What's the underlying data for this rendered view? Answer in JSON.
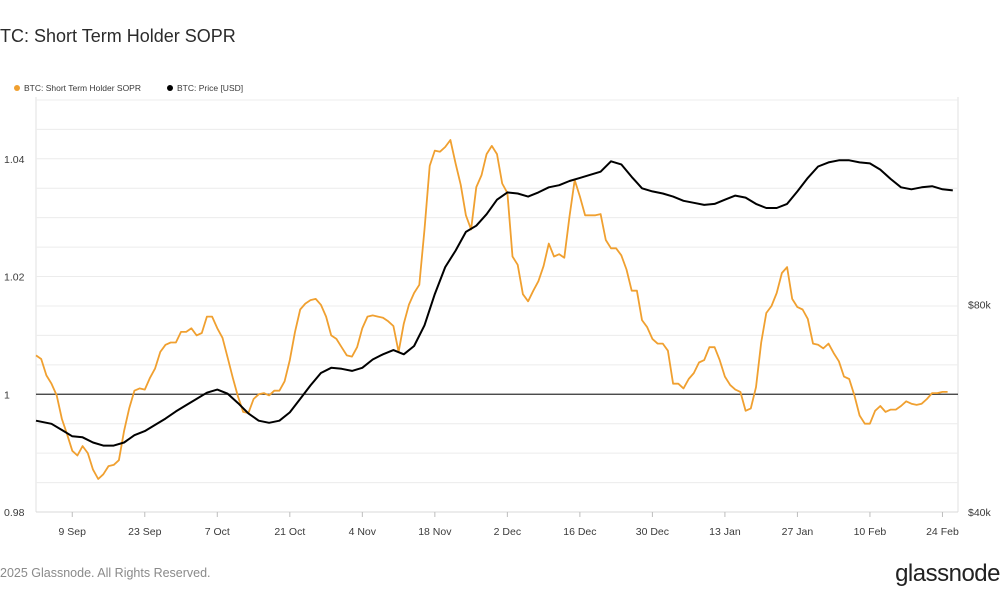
{
  "header": {
    "title": "TC: Short Term Holder SOPR"
  },
  "footer": {
    "copyright": "2025 Glassnode. All Rights Reserved.",
    "brand": "glassnode"
  },
  "colors": {
    "sopr": "#f0a030",
    "price": "#000000",
    "baseline": "#333333",
    "grid": "#ececec"
  },
  "chart_data": {
    "type": "line",
    "title": "TC: Short Term Holder SOPR",
    "legend": [
      "BTC: Short Term Holder SOPR",
      "BTC: Price [USD]"
    ],
    "legend_position": "top-left",
    "x_ticks": [
      "9 Sep",
      "23 Sep",
      "7 Oct",
      "21 Oct",
      "4 Nov",
      "18 Nov",
      "2 Dec",
      "16 Dec",
      "30 Dec",
      "13 Jan",
      "27 Jan",
      "10 Feb",
      "24 Feb"
    ],
    "x_tick_days": [
      7,
      21,
      35,
      49,
      63,
      77,
      91,
      105,
      119,
      133,
      147,
      161,
      175
    ],
    "x_range_days": [
      0,
      178
    ],
    "y_left": {
      "ticks": [
        0.98,
        1,
        1.02,
        1.04
      ],
      "tick_labels": [
        "0.98",
        "1",
        "1.02",
        "1.04"
      ],
      "range": [
        0.98,
        1.0505
      ]
    },
    "y_right": {
      "ticks": [
        40000,
        80000
      ],
      "tick_labels": [
        "$40k",
        "$80k"
      ],
      "range": [
        40000,
        120000
      ]
    },
    "series": [
      {
        "name": "BTC: Short Term Holder SOPR",
        "axis": "left",
        "points": [
          [
            0,
            1.0066
          ],
          [
            1,
            1.006
          ],
          [
            2,
            1.0032
          ],
          [
            3,
            1.0018
          ],
          [
            4,
            0.9998
          ],
          [
            5,
            0.9958
          ],
          [
            6,
            0.9932
          ],
          [
            7,
            0.9904
          ],
          [
            8,
            0.9896
          ],
          [
            9,
            0.9912
          ],
          [
            10,
            0.99
          ],
          [
            11,
            0.9872
          ],
          [
            12,
            0.9856
          ],
          [
            13,
            0.9864
          ],
          [
            14,
            0.9878
          ],
          [
            15,
            0.988
          ],
          [
            16,
            0.9888
          ],
          [
            17,
            0.9938
          ],
          [
            18,
            0.9976
          ],
          [
            19,
            1.0006
          ],
          [
            20,
            1.001
          ],
          [
            21,
            1.0008
          ],
          [
            22,
            1.0028
          ],
          [
            23,
            1.0044
          ],
          [
            24,
            1.0072
          ],
          [
            25,
            1.0084
          ],
          [
            26,
            1.0088
          ],
          [
            27,
            1.0088
          ],
          [
            28,
            1.0106
          ],
          [
            29,
            1.0106
          ],
          [
            30,
            1.0112
          ],
          [
            31,
            1.01
          ],
          [
            32,
            1.0104
          ],
          [
            33,
            1.0132
          ],
          [
            34,
            1.0132
          ],
          [
            35,
            1.0112
          ],
          [
            36,
            1.0096
          ],
          [
            37,
            1.0062
          ],
          [
            38,
            1.0028
          ],
          [
            39,
            0.9996
          ],
          [
            40,
            0.997
          ],
          [
            41,
            0.9968
          ],
          [
            42,
            0.9992
          ],
          [
            43,
            1
          ],
          [
            44,
            1.0002
          ],
          [
            45,
            0.9998
          ],
          [
            46,
            1.0006
          ],
          [
            47,
            1.0006
          ],
          [
            48,
            1.0022
          ],
          [
            49,
            1.0058
          ],
          [
            50,
            1.0106
          ],
          [
            51,
            1.0144
          ],
          [
            52,
            1.0154
          ],
          [
            53,
            1.016
          ],
          [
            54,
            1.0162
          ],
          [
            55,
            1.0152
          ],
          [
            56,
            1.0132
          ],
          [
            57,
            1.01
          ],
          [
            58,
            1.0094
          ],
          [
            59,
            1.008
          ],
          [
            60,
            1.0066
          ],
          [
            61,
            1.0064
          ],
          [
            62,
            1.008
          ],
          [
            63,
            1.0112
          ],
          [
            64,
            1.0132
          ],
          [
            65,
            1.0134
          ],
          [
            66,
            1.0132
          ],
          [
            67,
            1.013
          ],
          [
            68,
            1.0124
          ],
          [
            69,
            1.0116
          ],
          [
            70,
            1.0072
          ],
          [
            71,
            1.012
          ],
          [
            72,
            1.0152
          ],
          [
            73,
            1.0172
          ],
          [
            74,
            1.0186
          ],
          [
            75,
            1.028
          ],
          [
            76,
            1.0388
          ],
          [
            77,
            1.0414
          ],
          [
            78,
            1.0412
          ],
          [
            79,
            1.042
          ],
          [
            80,
            1.0432
          ],
          [
            81,
            1.0392
          ],
          [
            82,
            1.0356
          ],
          [
            83,
            1.0304
          ],
          [
            84,
            1.028
          ],
          [
            85,
            1.0352
          ],
          [
            86,
            1.0372
          ],
          [
            87,
            1.0408
          ],
          [
            88,
            1.0422
          ],
          [
            89,
            1.0408
          ],
          [
            90,
            1.0358
          ],
          [
            91,
            1.0342
          ],
          [
            92,
            1.0234
          ],
          [
            93,
            1.022
          ],
          [
            94,
            1.017
          ],
          [
            95,
            1.0158
          ],
          [
            96,
            1.0176
          ],
          [
            97,
            1.0192
          ],
          [
            98,
            1.0218
          ],
          [
            99,
            1.0256
          ],
          [
            100,
            1.0234
          ],
          [
            101,
            1.0238
          ],
          [
            102,
            1.0232
          ],
          [
            103,
            1.0302
          ],
          [
            104,
            1.0364
          ],
          [
            105,
            1.0336
          ],
          [
            106,
            1.0304
          ],
          [
            107,
            1.0304
          ],
          [
            108,
            1.0304
          ],
          [
            109,
            1.0306
          ],
          [
            110,
            1.0262
          ],
          [
            111,
            1.0248
          ],
          [
            112,
            1.0248
          ],
          [
            113,
            1.0236
          ],
          [
            114,
            1.0212
          ],
          [
            115,
            1.0176
          ],
          [
            116,
            1.0176
          ],
          [
            117,
            1.0126
          ],
          [
            118,
            1.0114
          ],
          [
            119,
            1.0094
          ],
          [
            120,
            1.0086
          ],
          [
            121,
            1.0086
          ],
          [
            122,
            1.0074
          ],
          [
            123,
            1.0018
          ],
          [
            124,
            1.0018
          ],
          [
            125,
            1.001
          ],
          [
            126,
            1.0026
          ],
          [
            127,
            1.0036
          ],
          [
            128,
            1.0054
          ],
          [
            129,
            1.0058
          ],
          [
            130,
            1.008
          ],
          [
            131,
            1.008
          ],
          [
            132,
            1.0058
          ],
          [
            133,
            1.003
          ],
          [
            134,
            1.0016
          ],
          [
            135,
            1.0008
          ],
          [
            136,
            1.0004
          ],
          [
            137,
            0.9972
          ],
          [
            138,
            0.9976
          ],
          [
            139,
            1.0012
          ],
          [
            140,
            1.0088
          ],
          [
            141,
            1.0138
          ],
          [
            142,
            1.015
          ],
          [
            143,
            1.0172
          ],
          [
            144,
            1.0206
          ],
          [
            145,
            1.0216
          ],
          [
            146,
            1.0162
          ],
          [
            147,
            1.0148
          ],
          [
            148,
            1.0144
          ],
          [
            149,
            1.0128
          ],
          [
            150,
            1.0086
          ],
          [
            151,
            1.0084
          ],
          [
            152,
            1.0078
          ],
          [
            153,
            1.0086
          ],
          [
            154,
            1.007
          ],
          [
            155,
            1.0056
          ],
          [
            156,
            1.003
          ],
          [
            157,
            1.0026
          ],
          [
            158,
            0.9998
          ],
          [
            159,
            0.9964
          ],
          [
            160,
            0.995
          ],
          [
            161,
            0.995
          ],
          [
            162,
            0.9972
          ],
          [
            163,
            0.998
          ],
          [
            164,
            0.997
          ],
          [
            165,
            0.9974
          ],
          [
            166,
            0.9974
          ],
          [
            167,
            0.998
          ],
          [
            168,
            0.9988
          ],
          [
            169,
            0.9984
          ],
          [
            170,
            0.9982
          ],
          [
            171,
            0.9984
          ],
          [
            172,
            0.9992
          ],
          [
            173,
            1.0002
          ],
          [
            174,
            1.0002
          ],
          [
            175,
            1.0004
          ],
          [
            176,
            1.0004
          ]
        ]
      },
      {
        "name": "BTC: Price [USD]",
        "axis": "right",
        "points": [
          [
            0,
            57600
          ],
          [
            3,
            57000
          ],
          [
            5,
            55800
          ],
          [
            7,
            54600
          ],
          [
            9,
            54400
          ],
          [
            11,
            53400
          ],
          [
            13,
            52800
          ],
          [
            15,
            52800
          ],
          [
            17,
            53400
          ],
          [
            19,
            54800
          ],
          [
            21,
            55600
          ],
          [
            23,
            56800
          ],
          [
            25,
            58000
          ],
          [
            27,
            59400
          ],
          [
            29,
            60600
          ],
          [
            31,
            61800
          ],
          [
            33,
            63000
          ],
          [
            35,
            63600
          ],
          [
            37,
            62800
          ],
          [
            39,
            61000
          ],
          [
            41,
            59000
          ],
          [
            43,
            57600
          ],
          [
            45,
            57200
          ],
          [
            47,
            57600
          ],
          [
            49,
            59200
          ],
          [
            51,
            61800
          ],
          [
            53,
            64400
          ],
          [
            55,
            66800
          ],
          [
            57,
            67800
          ],
          [
            59,
            67600
          ],
          [
            61,
            67200
          ],
          [
            63,
            67800
          ],
          [
            65,
            69400
          ],
          [
            67,
            70400
          ],
          [
            69,
            71200
          ],
          [
            71,
            70400
          ],
          [
            73,
            72000
          ],
          [
            75,
            76000
          ],
          [
            77,
            82000
          ],
          [
            79,
            87200
          ],
          [
            81,
            90400
          ],
          [
            83,
            94000
          ],
          [
            85,
            95200
          ],
          [
            87,
            97400
          ],
          [
            89,
            100200
          ],
          [
            91,
            101600
          ],
          [
            93,
            101400
          ],
          [
            95,
            100800
          ],
          [
            97,
            101600
          ],
          [
            99,
            102600
          ],
          [
            101,
            103000
          ],
          [
            103,
            103800
          ],
          [
            105,
            104400
          ],
          [
            107,
            105000
          ],
          [
            109,
            105600
          ],
          [
            111,
            107600
          ],
          [
            113,
            107000
          ],
          [
            115,
            104600
          ],
          [
            117,
            102400
          ],
          [
            119,
            101800
          ],
          [
            121,
            101400
          ],
          [
            123,
            100800
          ],
          [
            125,
            100000
          ],
          [
            127,
            99600
          ],
          [
            129,
            99200
          ],
          [
            131,
            99400
          ],
          [
            133,
            100200
          ],
          [
            135,
            101000
          ],
          [
            137,
            100600
          ],
          [
            139,
            99400
          ],
          [
            141,
            98600
          ],
          [
            143,
            98600
          ],
          [
            145,
            99400
          ],
          [
            147,
            101800
          ],
          [
            149,
            104400
          ],
          [
            151,
            106600
          ],
          [
            153,
            107400
          ],
          [
            155,
            107800
          ],
          [
            157,
            107800
          ],
          [
            159,
            107400
          ],
          [
            161,
            107200
          ],
          [
            163,
            106000
          ],
          [
            165,
            104200
          ],
          [
            167,
            102600
          ],
          [
            169,
            102200
          ],
          [
            171,
            102600
          ],
          [
            173,
            102800
          ],
          [
            175,
            102200
          ],
          [
            177,
            102000
          ]
        ]
      }
    ],
    "baseline": 1.0
  }
}
